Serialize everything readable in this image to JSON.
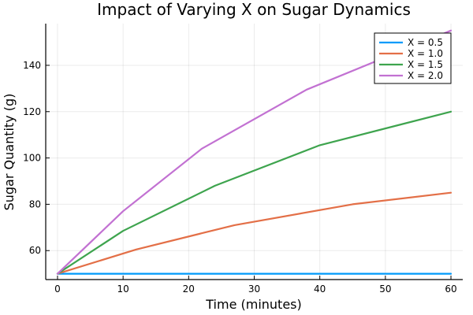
{
  "chart_data": {
    "type": "line",
    "title": "Impact of Varying X on Sugar Dynamics",
    "xlabel": "Time (minutes)",
    "ylabel": "Sugar Quantity (g)",
    "xlim": [
      -1.8,
      61.8
    ],
    "ylim": [
      47.5,
      158
    ],
    "xticks": [
      0,
      10,
      20,
      30,
      40,
      50,
      60
    ],
    "yticks": [
      60,
      80,
      100,
      120,
      140
    ],
    "grid": true,
    "legend_position": "top-right",
    "series": [
      {
        "name": "X = 0.5",
        "color": "#009AFA",
        "x": [
          0,
          10,
          20,
          30,
          40,
          50,
          60
        ],
        "y": [
          50,
          50,
          50,
          50,
          50,
          50,
          50
        ]
      },
      {
        "name": "X = 1.0",
        "color": "#E36F47",
        "x": [
          0,
          12,
          27,
          45,
          60
        ],
        "y": [
          50,
          60.5,
          71,
          80,
          85
        ]
      },
      {
        "name": "X = 1.5",
        "color": "#3EA44E",
        "x": [
          0,
          10,
          24,
          40,
          60
        ],
        "y": [
          50,
          68.5,
          88,
          105.5,
          120
        ]
      },
      {
        "name": "X = 2.0",
        "color": "#C271D2",
        "x": [
          0,
          10,
          22,
          38,
          60
        ],
        "y": [
          50,
          77,
          104,
          129.5,
          155
        ]
      }
    ]
  }
}
